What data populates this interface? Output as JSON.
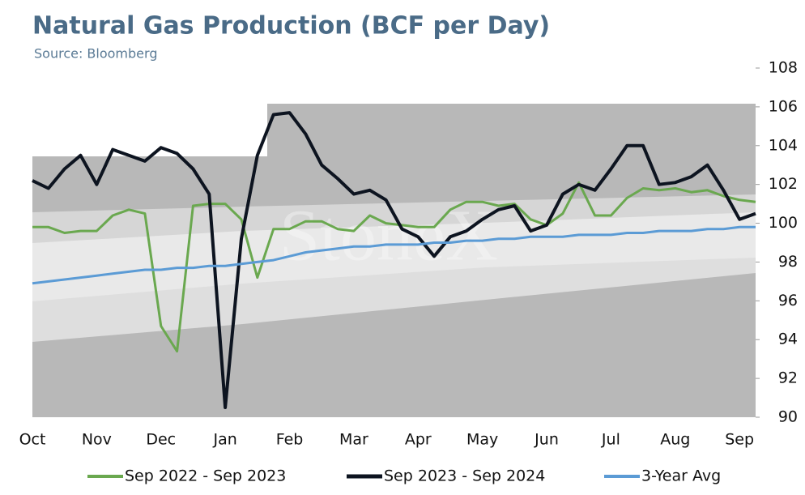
{
  "chart_data": {
    "type": "line",
    "title": "Natural Gas Production (BCF per Day)",
    "subtitle": "Source: Bloomberg",
    "watermark": "StoneX",
    "categories": [
      "Oct",
      null,
      null,
      null,
      "Nov",
      null,
      null,
      null,
      "Dec",
      null,
      null,
      null,
      "Jan",
      null,
      null,
      null,
      "Feb",
      null,
      null,
      null,
      "Mar",
      null,
      null,
      null,
      "Apr",
      null,
      null,
      null,
      "May",
      null,
      null,
      null,
      "Jun",
      null,
      null,
      null,
      "Jul",
      null,
      null,
      null,
      "Aug",
      null,
      null,
      null,
      "Sep",
      null
    ],
    "series": [
      {
        "name": "Sep 2022 - Sep 2023",
        "color": "#6aa84f",
        "width": 3,
        "values": [
          99.8,
          99.8,
          99.5,
          99.6,
          99.6,
          100.4,
          100.7,
          100.5,
          94.7,
          93.4,
          100.9,
          101.0,
          101.0,
          100.2,
          97.2,
          99.7,
          99.7,
          100.1,
          100.1,
          99.7,
          99.6,
          100.4,
          100.0,
          99.9,
          99.8,
          99.8,
          100.7,
          101.1,
          101.1,
          100.9,
          101.0,
          100.2,
          99.9,
          100.5,
          102.1,
          100.4,
          100.4,
          101.3,
          101.8,
          101.7,
          101.8,
          101.6,
          101.7,
          101.4,
          101.2,
          101.1
        ]
      },
      {
        "name": "Sep 2023 - Sep 2024",
        "color": "#0d1420",
        "width": 4,
        "values": [
          102.2,
          101.8,
          102.8,
          103.5,
          102.0,
          103.8,
          103.5,
          103.2,
          103.9,
          103.6,
          102.8,
          101.5,
          90.5,
          99.2,
          103.5,
          105.6,
          105.7,
          104.6,
          103.0,
          102.3,
          101.5,
          101.7,
          101.2,
          99.7,
          99.3,
          98.3,
          99.3,
          99.6,
          100.2,
          100.7,
          100.9,
          99.6,
          99.9,
          101.5,
          102.0,
          101.7,
          102.8,
          104.0,
          104.0,
          102.0,
          102.1,
          102.4,
          103.0,
          101.7,
          100.2,
          100.5
        ]
      },
      {
        "name": "3-Year Avg",
        "color": "#5b9bd5",
        "width": 3,
        "values": [
          96.9,
          97.0,
          97.1,
          97.2,
          97.3,
          97.4,
          97.5,
          97.6,
          97.6,
          97.7,
          97.7,
          97.8,
          97.8,
          97.9,
          98.0,
          98.1,
          98.3,
          98.5,
          98.6,
          98.7,
          98.8,
          98.8,
          98.9,
          98.9,
          98.9,
          99.0,
          99.0,
          99.1,
          99.1,
          99.2,
          99.2,
          99.3,
          99.3,
          99.3,
          99.4,
          99.4,
          99.4,
          99.5,
          99.5,
          99.6,
          99.6,
          99.6,
          99.7,
          99.7,
          99.8,
          99.8
        ]
      }
    ],
    "ylim": [
      90,
      108
    ],
    "yticks": [
      90,
      92,
      94,
      96,
      98,
      100,
      102,
      104,
      106,
      108
    ],
    "legend": "bottom"
  }
}
